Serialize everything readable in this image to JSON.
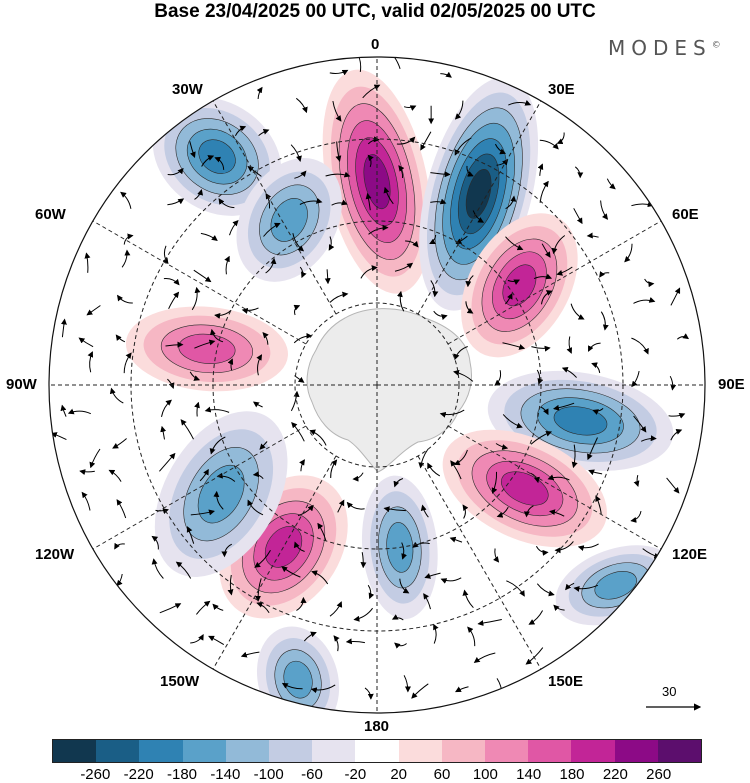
{
  "title": "Base 23/04/2025 00 UTC, valid 02/05/2025 00 UTC",
  "brand": "MODES",
  "brand_mark": "©",
  "longitude_labels": {
    "n0": "0",
    "e30": "30E",
    "e60": "60E",
    "e90": "90E",
    "e120": "120E",
    "e150": "150E",
    "s180": "180",
    "w150": "150W",
    "w120": "120W",
    "w90": "90W",
    "w60": "60W",
    "w30": "30W"
  },
  "reference_vector_label": "30",
  "colorbar": {
    "colors": [
      "#11374f",
      "#1a5e86",
      "#2f82b3",
      "#5aa1c9",
      "#92bad8",
      "#c3cce3",
      "#e6e3ef",
      "#ffffff",
      "#fbdcdc",
      "#f6b7c4",
      "#ef89b4",
      "#e057a5",
      "#c22597",
      "#8c0a86",
      "#5c0e6d"
    ],
    "ticks": [
      "-260",
      "-220",
      "-180",
      "-140",
      "-100",
      "-60",
      "-20",
      "20",
      "60",
      "100",
      "140",
      "180",
      "220",
      "260"
    ]
  },
  "anomaly_cells": [
    {
      "lon": 0,
      "lat_from_pole": 0.62,
      "sign": "positive",
      "strength": 5,
      "rx": 40,
      "ry": 95,
      "rot": -12
    },
    {
      "lon": 28,
      "lat_from_pole": 0.66,
      "sign": "negative",
      "strength": 6,
      "rx": 42,
      "ry": 100,
      "rot": 15
    },
    {
      "lon": 55,
      "lat_from_pole": 0.53,
      "sign": "positive",
      "strength": 4,
      "rx": 40,
      "ry": 65,
      "rot": 30
    },
    {
      "lon": 100,
      "lat_from_pole": 0.63,
      "sign": "negative",
      "strength": 4,
      "rx": 75,
      "ry": 40,
      "rot": 10
    },
    {
      "lon": 125,
      "lat_from_pole": 0.55,
      "sign": "positive",
      "strength": 4,
      "rx": 70,
      "ry": 42,
      "rot": 25
    },
    {
      "lon": 172,
      "lat_from_pole": 0.5,
      "sign": "negative",
      "strength": 3,
      "rx": 30,
      "ry": 60,
      "rot": -5
    },
    {
      "lon": -150,
      "lat_from_pole": 0.57,
      "sign": "positive",
      "strength": 4,
      "rx": 45,
      "ry": 65,
      "rot": 35
    },
    {
      "lon": -125,
      "lat_from_pole": 0.58,
      "sign": "negative",
      "strength": 3,
      "rx": 45,
      "ry": 75,
      "rot": 30
    },
    {
      "lon": -78,
      "lat_from_pole": 0.53,
      "sign": "positive",
      "strength": 3,
      "rx": 65,
      "ry": 35,
      "rot": 5
    },
    {
      "lon": -35,
      "lat_from_pole": 0.85,
      "sign": "negative",
      "strength": 4,
      "rx": 55,
      "ry": 45,
      "rot": 35
    },
    {
      "lon": -28,
      "lat_from_pole": 0.57,
      "sign": "negative",
      "strength": 3,
      "rx": 38,
      "ry": 55,
      "rot": 30
    },
    {
      "lon": 130,
      "lat_from_pole": 0.95,
      "sign": "negative",
      "strength": 3,
      "rx": 50,
      "ry": 30,
      "rot": -20
    },
    {
      "lon": -165,
      "lat_from_pole": 0.93,
      "sign": "negative",
      "strength": 3,
      "rx": 32,
      "ry": 45,
      "rot": -15
    }
  ]
}
